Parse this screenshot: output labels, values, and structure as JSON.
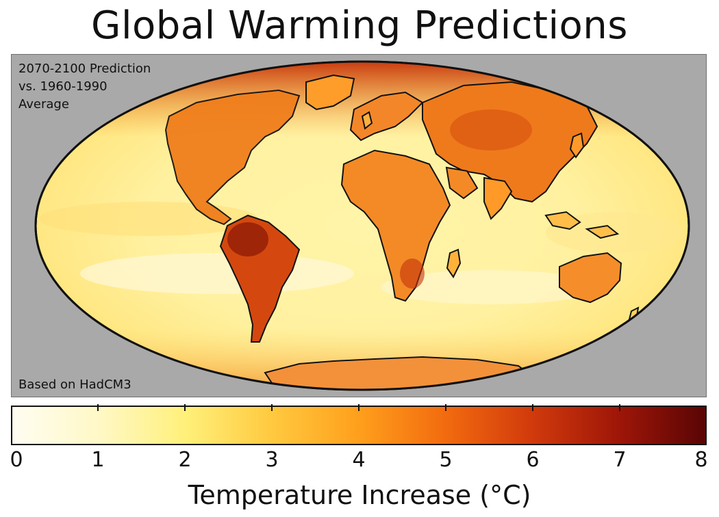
{
  "title": "Global Warming Predictions",
  "map": {
    "note_top": "2070-2100 Prediction\nvs. 1960-1990\nAverage",
    "note_bottom": "Based on HadCM3",
    "projection": "Mollweide",
    "panel_background": "#a9a9a9",
    "coastline_color": "#111111"
  },
  "colorbar": {
    "label": "Temperature Increase (°C)",
    "min": 0,
    "max": 8,
    "ticks": [
      "0",
      "1",
      "2",
      "3",
      "4",
      "5",
      "6",
      "7",
      "8"
    ],
    "color_stops": [
      {
        "value": 0,
        "color": "#fffdf2"
      },
      {
        "value": 1,
        "color": "#fff8c6"
      },
      {
        "value": 2,
        "color": "#fff07a"
      },
      {
        "value": 3,
        "color": "#ffc93f"
      },
      {
        "value": 4,
        "color": "#ff9f1c"
      },
      {
        "value": 5,
        "color": "#f26b0f"
      },
      {
        "value": 6,
        "color": "#d13a0c"
      },
      {
        "value": 7,
        "color": "#9e1608"
      },
      {
        "value": 8,
        "color": "#5a0505"
      }
    ]
  }
}
